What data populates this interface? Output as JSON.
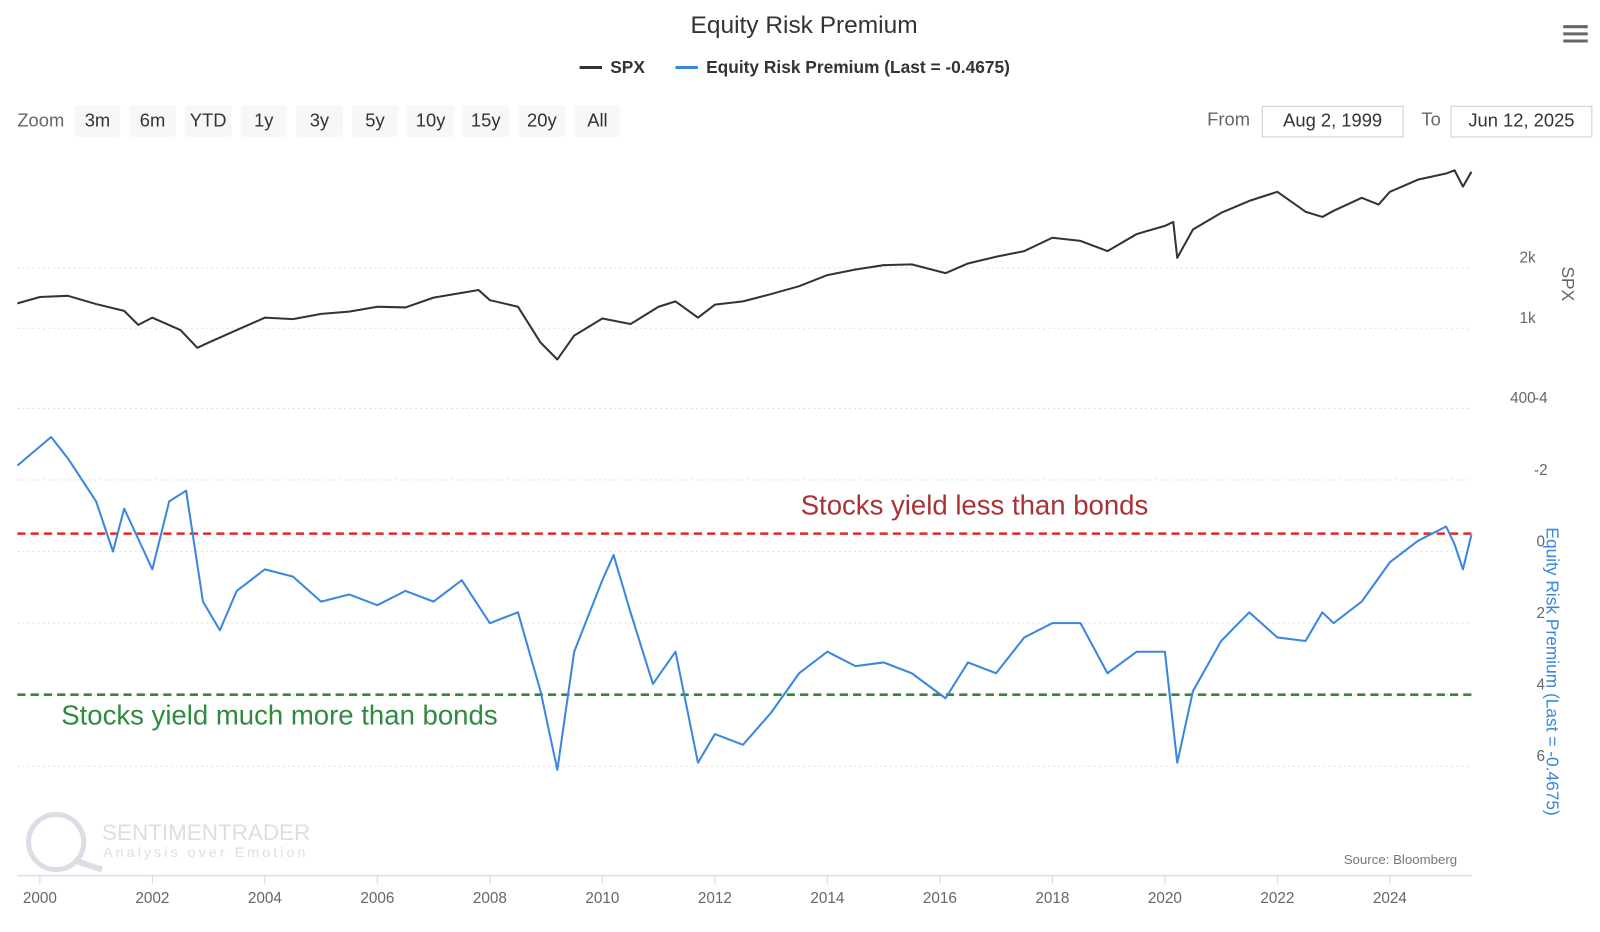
{
  "ui": {
    "zoom_label": "Zoom",
    "buttons": [
      "3m",
      "6m",
      "YTD",
      "1y",
      "3y",
      "5y",
      "10y",
      "15y",
      "20y",
      "All"
    ],
    "from_label": "From",
    "from": "Aug 2, 1999",
    "to_label": "To",
    "to": "Jun 12, 2025",
    "source": "Source: Bloomberg",
    "watermark": "SENTIMENTRADER",
    "watermark_tagline": "Analysis over Emotion"
  },
  "chart_data": [
    {
      "type": "line",
      "title": "Equity Risk Premium",
      "ylabel": "SPX",
      "log_scale": true,
      "xlim": [
        1999.6,
        2025.45
      ],
      "ylim": [
        400,
        6600
      ],
      "yticks": [
        400,
        {
          "value": 1000,
          "label": "1k"
        },
        {
          "value": 2000,
          "label": "2k"
        }
      ],
      "grid": true,
      "x": [
        1999.6,
        2000.0,
        2000.5,
        2001.0,
        2001.5,
        2001.75,
        2002.0,
        2002.5,
        2002.8,
        2003.0,
        2003.5,
        2004.0,
        2004.5,
        2005.0,
        2005.5,
        2006.0,
        2006.5,
        2007.0,
        2007.5,
        2007.8,
        2008.0,
        2008.5,
        2008.9,
        2009.2,
        2009.5,
        2010.0,
        2010.5,
        2011.0,
        2011.3,
        2011.7,
        2012.0,
        2012.5,
        2013.0,
        2013.5,
        2014.0,
        2014.5,
        2015.0,
        2015.5,
        2016.1,
        2016.5,
        2017.0,
        2017.5,
        2018.0,
        2018.5,
        2018.98,
        2019.5,
        2020.0,
        2020.15,
        2020.22,
        2020.5,
        2021.0,
        2021.5,
        2022.0,
        2022.5,
        2022.8,
        2023.0,
        2023.5,
        2023.8,
        2024.0,
        2024.5,
        2025.0,
        2025.15,
        2025.3,
        2025.45
      ],
      "series": [
        {
          "name": "SPX",
          "color": "#333333",
          "values": [
            1330,
            1430,
            1450,
            1320,
            1220,
            1040,
            1130,
            980,
            800,
            850,
            980,
            1130,
            1110,
            1180,
            1210,
            1280,
            1270,
            1420,
            1500,
            1550,
            1380,
            1280,
            850,
            700,
            920,
            1120,
            1050,
            1280,
            1360,
            1130,
            1310,
            1360,
            1480,
            1620,
            1840,
            1960,
            2060,
            2080,
            1880,
            2100,
            2270,
            2420,
            2820,
            2720,
            2420,
            2940,
            3230,
            3380,
            2240,
            3100,
            3750,
            4300,
            4770,
            3800,
            3580,
            3840,
            4450,
            4120,
            4770,
            5480,
            5880,
            6100,
            5060,
            6000
          ]
        }
      ]
    },
    {
      "type": "line",
      "ylabel": "Equity Risk Premium (Last = -0.4675)",
      "reversed": true,
      "xlim": [
        1999.6,
        2025.45
      ],
      "ylim": [
        -4,
        9
      ],
      "yticks": [
        -4,
        -2,
        0,
        2,
        4,
        6
      ],
      "grid": true,
      "xticks": [
        2000,
        2002,
        2004,
        2006,
        2008,
        2010,
        2012,
        2014,
        2016,
        2018,
        2020,
        2022,
        2024
      ],
      "x": [
        1999.6,
        2000.2,
        2000.5,
        2001.0,
        2001.3,
        2001.5,
        2002.0,
        2002.3,
        2002.6,
        2002.9,
        2003.2,
        2003.5,
        2004.0,
        2004.5,
        2005.0,
        2005.5,
        2006.0,
        2006.5,
        2007.0,
        2007.5,
        2008.0,
        2008.5,
        2008.9,
        2009.2,
        2009.5,
        2010.0,
        2010.2,
        2010.5,
        2010.9,
        2011.3,
        2011.7,
        2012.0,
        2012.5,
        2013.0,
        2013.5,
        2014.0,
        2014.5,
        2015.0,
        2015.5,
        2016.1,
        2016.5,
        2017.0,
        2017.5,
        2018.0,
        2018.5,
        2018.98,
        2019.5,
        2020.0,
        2020.22,
        2020.5,
        2021.0,
        2021.5,
        2022.0,
        2022.5,
        2022.8,
        2023.0,
        2023.5,
        2024.0,
        2024.5,
        2025.0,
        2025.15,
        2025.3,
        2025.45
      ],
      "series": [
        {
          "name": "Equity Risk Premium (Last = -0.4675)",
          "color": "#3a86e0",
          "values": [
            -2.4,
            -3.2,
            -2.6,
            -1.4,
            0,
            -1.2,
            0.5,
            -1.4,
            -1.7,
            1.4,
            2.2,
            1.1,
            0.5,
            0.7,
            1.4,
            1.2,
            1.5,
            1.1,
            1.4,
            0.8,
            2.0,
            1.7,
            3.9,
            6.1,
            2.8,
            0.8,
            0.1,
            1.7,
            3.7,
            2.8,
            5.9,
            5.1,
            5.4,
            4.5,
            3.4,
            2.8,
            3.2,
            3.1,
            3.4,
            4.1,
            3.1,
            3.4,
            2.4,
            2.0,
            2.0,
            3.4,
            2.8,
            2.8,
            5.9,
            3.9,
            2.5,
            1.7,
            2.4,
            2.5,
            1.7,
            2.0,
            1.4,
            0.3,
            -0.3,
            -0.7,
            -0.2,
            0.5,
            -0.4675
          ]
        }
      ],
      "reference_lines": [
        {
          "value": -0.5,
          "label": "Stocks yield less than bonds",
          "color": "#e8262a",
          "label_color": "#a83236"
        },
        {
          "value": 4,
          "label": "Stocks yield much more than bonds",
          "color": "#2e8b3e",
          "label_color": "#2e8b3e"
        }
      ]
    }
  ]
}
